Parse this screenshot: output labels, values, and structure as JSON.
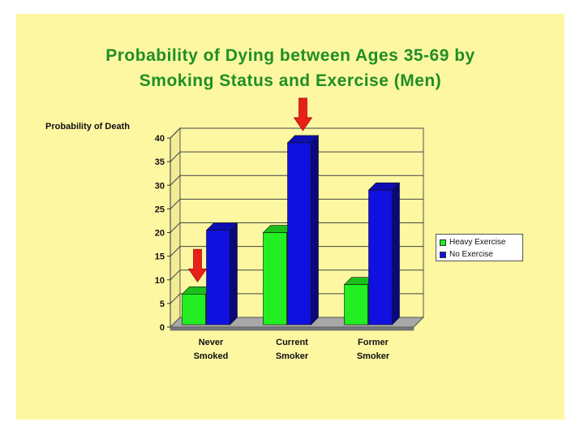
{
  "chart_data": {
    "type": "bar",
    "title_lines": [
      "Probability of Dying between Ages 35-69 by",
      "Smoking Status and Exercise (Men)"
    ],
    "ylabel": "Probability of Death",
    "xlabel": "",
    "categories": [
      "Never Smoked",
      "Current Smoker",
      "Former Smoker"
    ],
    "category_lines": [
      [
        "Never",
        "Smoked"
      ],
      [
        "Current",
        "Smoker"
      ],
      [
        "Former",
        "Smoker"
      ]
    ],
    "series": [
      {
        "name": "Heavy Exercise",
        "color": "#22ee22",
        "values": [
          7.5,
          20.5,
          9.5
        ]
      },
      {
        "name": "No Exercise",
        "color": "#1010e0",
        "values": [
          21,
          39.5,
          29.5
        ]
      }
    ],
    "ylim": [
      0,
      40
    ],
    "yticks": [
      0,
      5,
      10,
      15,
      20,
      25,
      30,
      35,
      40
    ],
    "grid": true,
    "legend_position": "right",
    "annotations": [
      {
        "type": "arrow",
        "color": "#e8201a",
        "series": "Heavy Exercise",
        "category": "Never Smoked"
      },
      {
        "type": "arrow",
        "color": "#e8201a",
        "series": "No Exercise",
        "category": "Current Smoker"
      }
    ]
  },
  "colors": {
    "background": "#fdf7a2",
    "title": "#1f8f24",
    "arrow": "#e8201a"
  }
}
